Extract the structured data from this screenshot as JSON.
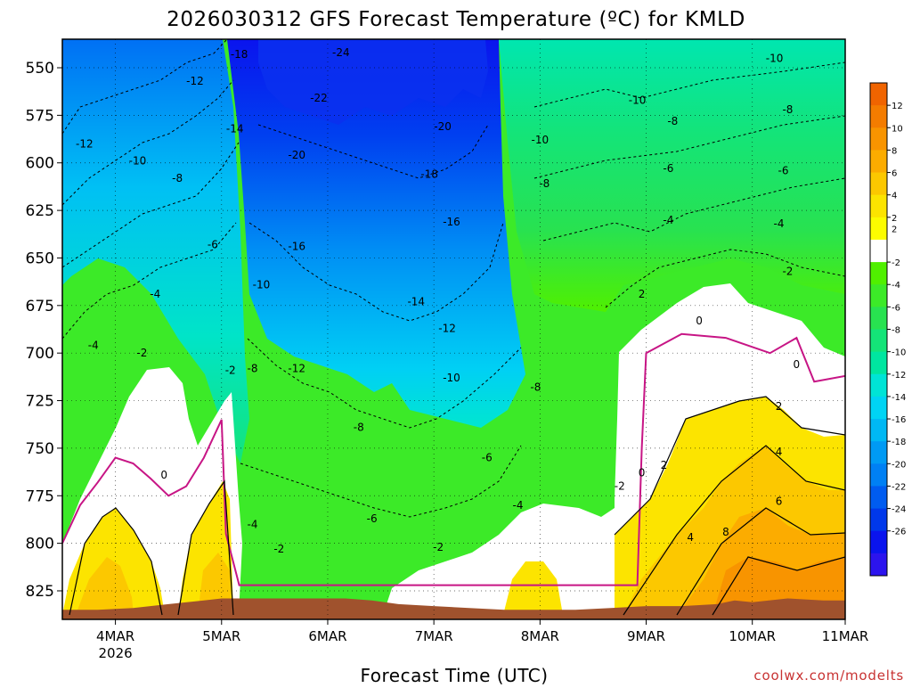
{
  "chart_data": {
    "type": "heatmap",
    "title": "2026030312 GFS Forecast Temperature (ºC) for KMLD",
    "xlabel": "Forecast Time (UTC)",
    "ylabel": "",
    "credit": "coolwx.com/modelts",
    "y_axis": {
      "units": "hPa",
      "direction": "pressure-decreasing-upward",
      "ylim": [
        840,
        535
      ],
      "ticks": [
        550,
        575,
        600,
        625,
        650,
        675,
        700,
        725,
        750,
        775,
        800,
        825
      ]
    },
    "x_axis": {
      "xlim_hours_from_run": [
        0,
        177
      ],
      "ticks": [
        {
          "label": "4MAR",
          "sub": "2026",
          "hour": 12
        },
        {
          "label": "5MAR",
          "sub": "",
          "hour": 36
        },
        {
          "label": "6MAR",
          "sub": "",
          "hour": 60
        },
        {
          "label": "7MAR",
          "sub": "",
          "hour": 84
        },
        {
          "label": "8MAR",
          "sub": "",
          "hour": 108
        },
        {
          "label": "9MAR",
          "sub": "",
          "hour": 132
        },
        {
          "label": "10MAR",
          "sub": "",
          "hour": 156
        },
        {
          "label": "11MAR",
          "sub": "",
          "hour": 180
        }
      ]
    },
    "grid": "dotted",
    "colorbar": {
      "placement": "right",
      "labels": [
        "12",
        "10",
        "8",
        "6",
        "4",
        "2",
        "-2",
        "-4",
        "-6",
        "-8",
        "-10",
        "-12",
        "-14",
        "-16",
        "-18",
        "-20",
        "-22",
        "-24",
        "-26"
      ],
      "colors": [
        "#f06400",
        "#f47c00",
        "#f89400",
        "#fcac00",
        "#fcc800",
        "#fce400",
        "#fcfc00",
        "#ffffff",
        "#50f000",
        "#3cea28",
        "#28e250",
        "#14e478",
        "#00e6a0",
        "#00e4d6",
        "#00d4f4",
        "#00b8f4",
        "#009af4",
        "#0080f4",
        "#005cf0",
        "#0038ea",
        "#0a14ee",
        "#2c14ee"
      ]
    },
    "ground_color": "#a0522d",
    "zero_line_color": "#c71585",
    "surface_pressure": [
      {
        "x": 0,
        "p": 835
      },
      {
        "x": 8,
        "p": 835
      },
      {
        "x": 16,
        "p": 834
      },
      {
        "x": 24,
        "p": 832
      },
      {
        "x": 32,
        "p": 830
      },
      {
        "x": 36,
        "p": 829
      },
      {
        "x": 40,
        "p": 829
      },
      {
        "x": 48,
        "p": 829
      },
      {
        "x": 56,
        "p": 829
      },
      {
        "x": 64,
        "p": 829
      },
      {
        "x": 70,
        "p": 830
      },
      {
        "x": 76,
        "p": 832
      },
      {
        "x": 84,
        "p": 833
      },
      {
        "x": 92,
        "p": 834
      },
      {
        "x": 100,
        "p": 835
      },
      {
        "x": 108,
        "p": 835
      },
      {
        "x": 116,
        "p": 835
      },
      {
        "x": 124,
        "p": 834
      },
      {
        "x": 132,
        "p": 833
      },
      {
        "x": 140,
        "p": 833
      },
      {
        "x": 148,
        "p": 832
      },
      {
        "x": 152,
        "p": 830
      },
      {
        "x": 156,
        "p": 831
      },
      {
        "x": 164,
        "p": 829
      },
      {
        "x": 172,
        "p": 830
      },
      {
        "x": 177,
        "p": 830
      }
    ],
    "zero_isotherm": [
      {
        "x": 0,
        "p": 800
      },
      {
        "x": 4,
        "p": 780
      },
      {
        "x": 8,
        "p": 768
      },
      {
        "x": 12,
        "p": 755
      },
      {
        "x": 16,
        "p": 758
      },
      {
        "x": 20,
        "p": 766
      },
      {
        "x": 24,
        "p": 775
      },
      {
        "x": 28,
        "p": 770
      },
      {
        "x": 32,
        "p": 755
      },
      {
        "x": 36,
        "p": 735
      },
      {
        "x": 37,
        "p": 795
      },
      {
        "x": 40,
        "p": 822
      },
      {
        "x": 130,
        "p": 822
      },
      {
        "x": 131,
        "p": 750
      },
      {
        "x": 132,
        "p": 700
      },
      {
        "x": 136,
        "p": 695
      },
      {
        "x": 140,
        "p": 690
      },
      {
        "x": 150,
        "p": 692
      },
      {
        "x": 160,
        "p": 700
      },
      {
        "x": 166,
        "p": 692
      },
      {
        "x": 170,
        "p": 715
      },
      {
        "x": 177,
        "p": 712
      }
    ],
    "contour_labels": [
      {
        "v": "-18",
        "x": 40,
        "p": 543
      },
      {
        "v": "-24",
        "x": 63,
        "p": 542
      },
      {
        "v": "-12",
        "x": 30,
        "p": 557
      },
      {
        "v": "-22",
        "x": 58,
        "p": 566
      },
      {
        "v": "-14",
        "x": 39,
        "p": 582
      },
      {
        "v": "-20",
        "x": 86,
        "p": 581
      },
      {
        "v": "-12",
        "x": 5,
        "p": 590
      },
      {
        "v": "-20",
        "x": 53,
        "p": 596
      },
      {
        "v": "-10",
        "x": 17,
        "p": 599
      },
      {
        "v": "-18",
        "x": 83,
        "p": 606
      },
      {
        "v": "-8",
        "x": 26,
        "p": 608
      },
      {
        "v": "-16",
        "x": 88,
        "p": 631
      },
      {
        "v": "-6",
        "x": 34,
        "p": 643
      },
      {
        "v": "-16",
        "x": 53,
        "p": 644
      },
      {
        "v": "-10",
        "x": 45,
        "p": 664
      },
      {
        "v": "-4",
        "x": 21,
        "p": 669
      },
      {
        "v": "-14",
        "x": 80,
        "p": 673
      },
      {
        "v": "-12",
        "x": 87,
        "p": 687
      },
      {
        "v": "-4",
        "x": 7,
        "p": 696
      },
      {
        "v": "-2",
        "x": 18,
        "p": 700
      },
      {
        "v": "-8",
        "x": 43,
        "p": 708
      },
      {
        "v": "-12",
        "x": 53,
        "p": 708
      },
      {
        "v": "-2",
        "x": 38,
        "p": 709
      },
      {
        "v": "-10",
        "x": 88,
        "p": 713
      },
      {
        "v": "-8",
        "x": 107,
        "p": 718
      },
      {
        "v": "-8",
        "x": 67,
        "p": 739
      },
      {
        "v": "-6",
        "x": 96,
        "p": 755
      },
      {
        "v": "0",
        "x": 23,
        "p": 764
      },
      {
        "v": "-4",
        "x": 103,
        "p": 780
      },
      {
        "v": "-6",
        "x": 70,
        "p": 787
      },
      {
        "v": "-4",
        "x": 43,
        "p": 790
      },
      {
        "v": "-2",
        "x": 49,
        "p": 803
      },
      {
        "v": "-2",
        "x": 85,
        "p": 802
      },
      {
        "v": "-10",
        "x": 108,
        "p": 588
      },
      {
        "v": "-8",
        "x": 109,
        "p": 611
      },
      {
        "v": "-10",
        "x": 130,
        "p": 567
      },
      {
        "v": "-8",
        "x": 138,
        "p": 578
      },
      {
        "v": "-10",
        "x": 161,
        "p": 545
      },
      {
        "v": "-8",
        "x": 164,
        "p": 572
      },
      {
        "v": "-6",
        "x": 137,
        "p": 603
      },
      {
        "v": "-6",
        "x": 163,
        "p": 604
      },
      {
        "v": "-4",
        "x": 137,
        "p": 630
      },
      {
        "v": "-4",
        "x": 162,
        "p": 632
      },
      {
        "v": "-2",
        "x": 164,
        "p": 657
      },
      {
        "v": "2",
        "x": 131,
        "p": 669
      },
      {
        "v": "0",
        "x": 144,
        "p": 683
      },
      {
        "v": "0",
        "x": 166,
        "p": 706
      },
      {
        "v": "2",
        "x": 162,
        "p": 728
      },
      {
        "v": "0",
        "x": 131,
        "p": 763
      },
      {
        "v": "2",
        "x": 136,
        "p": 759
      },
      {
        "v": "-2",
        "x": 126,
        "p": 770
      },
      {
        "v": "4",
        "x": 162,
        "p": 752
      },
      {
        "v": "6",
        "x": 162,
        "p": 778
      },
      {
        "v": "4",
        "x": 142,
        "p": 797
      },
      {
        "v": "8",
        "x": 150,
        "p": 794
      }
    ]
  }
}
